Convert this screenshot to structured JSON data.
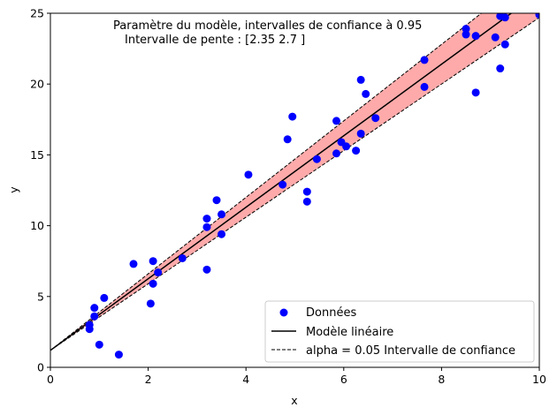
{
  "chart_data": {
    "type": "scatter",
    "title_line1": "Paramètre du modèle, intervalles de confiance à 0.95",
    "title_line2": "Intervalle de pente : [2.35 2.7 ]",
    "xlabel": "x",
    "ylabel": "y",
    "xlim": [
      0,
      10
    ],
    "ylim": [
      0,
      25
    ],
    "xticks": [
      0,
      2,
      4,
      6,
      8,
      10
    ],
    "yticks": [
      0,
      5,
      10,
      15,
      20,
      25
    ],
    "grid": false,
    "legend_position": "lower-right",
    "legend": {
      "points_label": "Données",
      "line_label": "Modèle linéaire",
      "ci_label": "alpha = 0.05 Intervalle de confiance"
    },
    "colors": {
      "points": "#0000ff",
      "line": "#000000",
      "band": "#ffaaaa"
    },
    "model": {
      "intercept": 1.2,
      "slope": 2.525,
      "lower": {
        "intercept": 1.2,
        "slope": 2.35
      },
      "upper": {
        "intercept": 1.2,
        "slope": 2.7
      }
    },
    "points": [
      {
        "x": 0.8,
        "y": 3.0
      },
      {
        "x": 0.8,
        "y": 2.7
      },
      {
        "x": 0.9,
        "y": 3.6
      },
      {
        "x": 0.9,
        "y": 4.2
      },
      {
        "x": 1.0,
        "y": 1.6
      },
      {
        "x": 1.1,
        "y": 4.9
      },
      {
        "x": 1.4,
        "y": 0.9
      },
      {
        "x": 1.7,
        "y": 7.3
      },
      {
        "x": 2.05,
        "y": 4.5
      },
      {
        "x": 2.1,
        "y": 7.5
      },
      {
        "x": 2.1,
        "y": 5.9
      },
      {
        "x": 2.2,
        "y": 6.7
      },
      {
        "x": 2.7,
        "y": 7.7
      },
      {
        "x": 3.2,
        "y": 6.9
      },
      {
        "x": 3.2,
        "y": 9.9
      },
      {
        "x": 3.2,
        "y": 10.5
      },
      {
        "x": 3.4,
        "y": 11.8
      },
      {
        "x": 3.5,
        "y": 9.4
      },
      {
        "x": 3.5,
        "y": 10.8
      },
      {
        "x": 4.05,
        "y": 13.6
      },
      {
        "x": 4.75,
        "y": 12.9
      },
      {
        "x": 4.85,
        "y": 16.1
      },
      {
        "x": 4.95,
        "y": 17.7
      },
      {
        "x": 5.25,
        "y": 12.4
      },
      {
        "x": 5.25,
        "y": 11.7
      },
      {
        "x": 5.45,
        "y": 14.7
      },
      {
        "x": 5.85,
        "y": 17.4
      },
      {
        "x": 5.85,
        "y": 15.1
      },
      {
        "x": 5.95,
        "y": 15.9
      },
      {
        "x": 6.05,
        "y": 15.6
      },
      {
        "x": 6.25,
        "y": 15.3
      },
      {
        "x": 6.35,
        "y": 16.5
      },
      {
        "x": 6.35,
        "y": 20.3
      },
      {
        "x": 6.45,
        "y": 19.3
      },
      {
        "x": 6.65,
        "y": 17.6
      },
      {
        "x": 7.65,
        "y": 21.7
      },
      {
        "x": 7.65,
        "y": 19.8
      },
      {
        "x": 8.5,
        "y": 23.9
      },
      {
        "x": 8.5,
        "y": 23.5
      },
      {
        "x": 8.7,
        "y": 23.4
      },
      {
        "x": 8.7,
        "y": 19.4
      },
      {
        "x": 9.1,
        "y": 23.3
      },
      {
        "x": 9.2,
        "y": 21.1
      },
      {
        "x": 9.2,
        "y": 24.8
      },
      {
        "x": 9.3,
        "y": 24.7
      },
      {
        "x": 9.3,
        "y": 22.8
      },
      {
        "x": 10.0,
        "y": 24.9
      }
    ]
  }
}
